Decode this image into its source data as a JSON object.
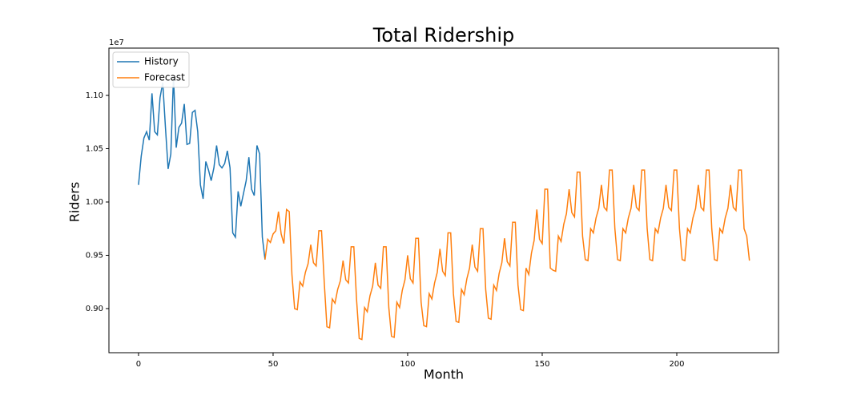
{
  "chart_data": {
    "type": "line",
    "title": "Total Ridership",
    "x_label": "Month",
    "y_label": "Riders",
    "y_offset_label": "1e7",
    "xlim": [
      -11,
      237.8
    ],
    "ylim": [
      0.8586,
      1.1444
    ],
    "xticks": [
      0,
      50,
      100,
      150,
      200
    ],
    "yticks": [
      {
        "value": 0.9,
        "label": "0.90"
      },
      {
        "value": 0.95,
        "label": "0.95"
      },
      {
        "value": 1.0,
        "label": "1.00"
      },
      {
        "value": 1.05,
        "label": "1.05"
      },
      {
        "value": 1.1,
        "label": "1.10"
      }
    ],
    "grid": false,
    "legend": "upper left",
    "series": [
      {
        "name": "History",
        "color": "#1f77b4",
        "x": [
          0,
          1,
          2,
          3,
          4,
          5,
          6,
          7,
          8,
          9,
          10,
          11,
          12,
          13,
          14,
          15,
          16,
          17,
          18,
          19,
          20,
          21,
          22,
          23,
          24,
          25,
          26,
          27,
          28,
          29,
          30,
          31,
          32,
          33,
          34,
          35,
          36,
          37,
          38,
          39,
          40,
          41,
          42,
          43,
          44,
          45,
          46,
          47
        ],
        "values": [
          1.016,
          1.043,
          1.06,
          1.066,
          1.058,
          1.102,
          1.066,
          1.063,
          1.098,
          1.112,
          1.07,
          1.031,
          1.045,
          1.118,
          1.051,
          1.07,
          1.074,
          1.092,
          1.054,
          1.055,
          1.084,
          1.086,
          1.066,
          1.016,
          1.003,
          1.038,
          1.03,
          1.02,
          1.032,
          1.053,
          1.035,
          1.032,
          1.036,
          1.048,
          1.032,
          0.971,
          0.967,
          1.01,
          0.996,
          1.008,
          1.02,
          1.042,
          1.012,
          1.006,
          1.053,
          1.045,
          0.967,
          0.946
        ]
      },
      {
        "name": "Forecast",
        "color": "#ff7f0e",
        "x": [
          47,
          48,
          49,
          50,
          51,
          52,
          53,
          54,
          55,
          56,
          57,
          58,
          59,
          60,
          61,
          62,
          63,
          64,
          65,
          66,
          67,
          68,
          69,
          70,
          71,
          72,
          73,
          74,
          75,
          76,
          77,
          78,
          79,
          80,
          81,
          82,
          83,
          84,
          85,
          86,
          87,
          88,
          89,
          90,
          91,
          92,
          93,
          94,
          95,
          96,
          97,
          98,
          99,
          100,
          101,
          102,
          103,
          104,
          105,
          106,
          107,
          108,
          109,
          110,
          111,
          112,
          113,
          114,
          115,
          116,
          117,
          118,
          119,
          120,
          121,
          122,
          123,
          124,
          125,
          126,
          127,
          128,
          129,
          130,
          131,
          132,
          133,
          134,
          135,
          136,
          137,
          138,
          139,
          140,
          141,
          142,
          143,
          144,
          145,
          146,
          147,
          148,
          149,
          150,
          151,
          152,
          153,
          154,
          155,
          156,
          157,
          158,
          159,
          160,
          161,
          162,
          163,
          164,
          165,
          166,
          167,
          168,
          169,
          170,
          171,
          172,
          173,
          174,
          175,
          176,
          177,
          178,
          179,
          180,
          181,
          182,
          183,
          184,
          185,
          186,
          187,
          188,
          189,
          190,
          191,
          192,
          193,
          194,
          195,
          196,
          197,
          198,
          199,
          200,
          201,
          202,
          203,
          204,
          205,
          206,
          207,
          208,
          209,
          210,
          211,
          212,
          213,
          214,
          215,
          216,
          217,
          218,
          219,
          220,
          221,
          222,
          223,
          224,
          225,
          226,
          227
        ],
        "values": [
          0.946,
          0.965,
          0.962,
          0.97,
          0.973,
          0.991,
          0.97,
          0.961,
          0.993,
          0.991,
          0.932,
          0.9,
          0.899,
          0.925,
          0.921,
          0.934,
          0.942,
          0.96,
          0.943,
          0.94,
          0.973,
          0.973,
          0.925,
          0.883,
          0.882,
          0.909,
          0.905,
          0.918,
          0.926,
          0.945,
          0.927,
          0.924,
          0.958,
          0.958,
          0.909,
          0.872,
          0.871,
          0.901,
          0.897,
          0.912,
          0.921,
          0.943,
          0.922,
          0.919,
          0.958,
          0.958,
          0.901,
          0.874,
          0.873,
          0.906,
          0.901,
          0.917,
          0.927,
          0.95,
          0.928,
          0.924,
          0.966,
          0.966,
          0.906,
          0.884,
          0.883,
          0.914,
          0.909,
          0.924,
          0.934,
          0.956,
          0.935,
          0.931,
          0.971,
          0.971,
          0.914,
          0.888,
          0.887,
          0.918,
          0.913,
          0.928,
          0.938,
          0.96,
          0.939,
          0.935,
          0.975,
          0.975,
          0.918,
          0.891,
          0.89,
          0.922,
          0.917,
          0.933,
          0.943,
          0.966,
          0.944,
          0.94,
          0.981,
          0.981,
          0.922,
          0.899,
          0.898,
          0.938,
          0.932,
          0.952,
          0.964,
          0.993,
          0.965,
          0.961,
          1.012,
          1.012,
          0.938,
          0.936,
          0.935,
          0.968,
          0.963,
          0.979,
          0.989,
          1.012,
          0.99,
          0.986,
          1.028,
          1.028,
          0.968,
          0.946,
          0.945,
          0.975,
          0.971,
          0.985,
          0.994,
          1.016,
          0.995,
          0.992,
          1.03,
          1.03,
          0.975,
          0.946,
          0.945,
          0.975,
          0.971,
          0.985,
          0.994,
          1.016,
          0.995,
          0.992,
          1.03,
          1.03,
          0.975,
          0.946,
          0.945,
          0.975,
          0.971,
          0.985,
          0.994,
          1.016,
          0.995,
          0.992,
          1.03,
          1.03,
          0.975,
          0.946,
          0.945,
          0.975,
          0.971,
          0.985,
          0.994,
          1.016,
          0.995,
          0.992,
          1.03,
          1.03,
          0.975,
          0.946,
          0.945,
          0.975,
          0.971,
          0.985,
          0.994,
          1.016,
          0.995,
          0.992,
          1.03,
          1.03,
          0.975,
          0.968,
          0.945
        ]
      }
    ]
  }
}
